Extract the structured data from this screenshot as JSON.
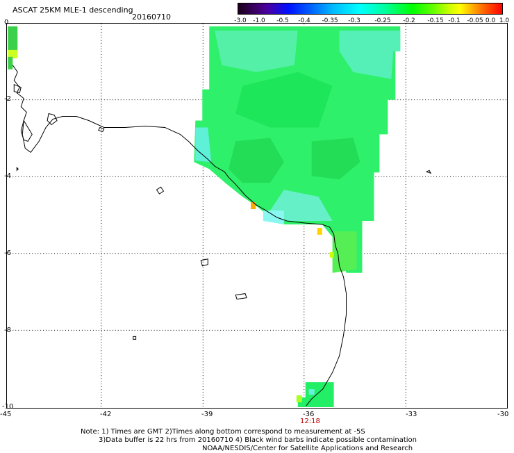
{
  "header": {
    "title": "ASCAT 25KM MLE-1 descending",
    "date": "20160710"
  },
  "colorbar": {
    "labels": [
      "-3.0",
      "-1.0",
      "-0.5",
      "-0.4",
      "-0.35",
      "-0.3",
      "-0.25",
      "-0.2",
      "-0.15",
      "-0.1",
      "-0.05",
      "0.0",
      "1.0"
    ]
  },
  "axes": {
    "x_ticks": [
      "-45",
      "-42",
      "-39",
      "-36",
      "-33",
      "-30"
    ],
    "y_ticks": [
      "0",
      "-2",
      "-4",
      "-6",
      "-8",
      "-10"
    ]
  },
  "time_label": "12:18",
  "notes": {
    "line1": "Note: 1) Times are GMT 2)Times along bottom correspond to measurement at -5S",
    "line2": "3)Data buffer is 22 hrs from 20160710 4) Black wind barbs indicate possible contamination",
    "line3": "NOAA/NESDIS/Center for Satellite Applications and Research"
  }
}
